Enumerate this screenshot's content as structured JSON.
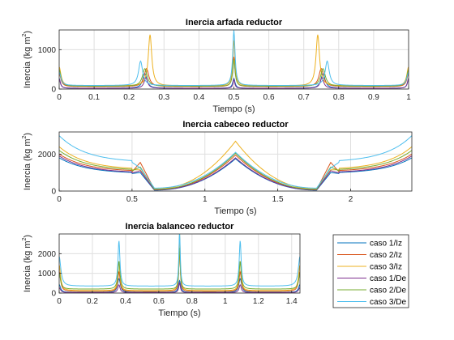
{
  "colors": {
    "caso1_Iz": "#0072BD",
    "caso2_Iz": "#D95319",
    "caso3_Iz": "#EDB120",
    "caso1_De": "#7E2F8E",
    "caso2_De": "#77AC30",
    "caso3_De": "#4DBEEE",
    "grid": "#dfdfdf",
    "axis": "#262626"
  },
  "legend": {
    "placement": "right of bottom panel",
    "entries": [
      "caso 1/Iz",
      "caso 2/Iz",
      "caso 3/Iz",
      "caso 1/De",
      "caso 2/De",
      "caso 3/De"
    ]
  },
  "chart_data": [
    {
      "type": "line",
      "title": "Inercia arfada reductor",
      "xlabel": "Tiempo (s)",
      "ylabel_text": "Inercia (kg m",
      "ylabel_sup": "2",
      "ylabel_close": ")",
      "xlim": [
        0,
        1
      ],
      "ylim": [
        0,
        1500
      ],
      "xticks": [
        0,
        0.1,
        0.2,
        0.3,
        0.4,
        0.5,
        0.6,
        0.7,
        0.8,
        0.9,
        1
      ],
      "xtick_labels": [
        "0",
        "0.1",
        "0.2",
        "0.3",
        "0.4",
        "0.5",
        "0.6",
        "0.7",
        "0.8",
        "0.9",
        "1"
      ],
      "yticks": [
        0,
        1000
      ],
      "ytick_labels": [
        "0",
        "1000"
      ],
      "grid": true,
      "period": 0.5,
      "series": [
        {
          "key": "caso1_Iz",
          "base": 20,
          "peaks": [
            {
              "x": 0.245,
              "h": 380,
              "w": 0.007
            },
            {
              "x": 0.5,
              "h": 250,
              "w": 0.004
            },
            {
              "x": 0.755,
              "h": 380,
              "w": 0.007
            },
            {
              "x": 1.0,
              "h": 250,
              "w": 0.004
            },
            {
              "x": 0,
              "h": 250,
              "w": 0.004
            }
          ]
        },
        {
          "key": "caso2_Iz",
          "base": 60,
          "peaks": [
            {
              "x": 0.25,
              "h": 460,
              "w": 0.008
            },
            {
              "x": 0.5,
              "h": 760,
              "w": 0.004
            },
            {
              "x": 0.75,
              "h": 460,
              "w": 0.008
            },
            {
              "x": 1.0,
              "h": 330,
              "w": 0.006
            },
            {
              "x": 0,
              "h": 330,
              "w": 0.006
            }
          ]
        },
        {
          "key": "caso3_Iz",
          "base": 80,
          "peaks": [
            {
              "x": 0.26,
              "h": 1300,
              "w": 0.006
            },
            {
              "x": 0.5,
              "h": 1150,
              "w": 0.004
            },
            {
              "x": 0.74,
              "h": 1300,
              "w": 0.006
            },
            {
              "x": 1.0,
              "h": 480,
              "w": 0.006
            },
            {
              "x": 0,
              "h": 480,
              "w": 0.006
            }
          ]
        },
        {
          "key": "caso1_De",
          "base": 20,
          "peaks": [
            {
              "x": 0.248,
              "h": 270,
              "w": 0.006
            },
            {
              "x": 0.5,
              "h": 230,
              "w": 0.003
            },
            {
              "x": 0.752,
              "h": 270,
              "w": 0.006
            },
            {
              "x": 1.0,
              "h": 240,
              "w": 0.004
            },
            {
              "x": 0,
              "h": 240,
              "w": 0.004
            }
          ]
        },
        {
          "key": "caso2_De",
          "base": 70,
          "peaks": [
            {
              "x": 0.245,
              "h": 450,
              "w": 0.008
            },
            {
              "x": 0.5,
              "h": 680,
              "w": 0.004
            },
            {
              "x": 0.755,
              "h": 450,
              "w": 0.008
            },
            {
              "x": 1.0,
              "h": 420,
              "w": 0.006
            },
            {
              "x": 0,
              "h": 420,
              "w": 0.006
            }
          ]
        },
        {
          "key": "caso3_De",
          "base": 90,
          "peaks": [
            {
              "x": 0.233,
              "h": 620,
              "w": 0.007
            },
            {
              "x": 0.5,
              "h": 1400,
              "w": 0.004
            },
            {
              "x": 0.767,
              "h": 620,
              "w": 0.007
            },
            {
              "x": 1.0,
              "h": 330,
              "w": 0.006
            },
            {
              "x": 0,
              "h": 330,
              "w": 0.006
            }
          ]
        }
      ]
    },
    {
      "type": "line",
      "title": "Inercia cabeceo reductor",
      "xlabel": "Tiempo (s)",
      "ylabel_text": "Inercia (kg m",
      "ylabel_sup": "2",
      "ylabel_close": ")",
      "xlim": [
        0,
        2.42
      ],
      "ylim": [
        0,
        3200
      ],
      "xticks": [
        0,
        0.5,
        1,
        1.5,
        2
      ],
      "xtick_labels": [
        "0",
        "0.5",
        "1",
        "1.5",
        "2"
      ],
      "yticks": [
        0,
        2000
      ],
      "ytick_labels": [
        "0",
        "2000"
      ],
      "grid": true,
      "series": [
        {
          "key": "caso1_Iz",
          "shape": "cabeceo",
          "start": 1800,
          "trough": 950,
          "dip": 1000,
          "mid": 1750,
          "low": 50
        },
        {
          "key": "caso2_Iz",
          "shape": "cabeceo",
          "start": 2000,
          "trough": 1050,
          "dip": 1550,
          "mid": 1950,
          "low": 80
        },
        {
          "key": "caso3_Iz",
          "shape": "cabeceo",
          "start": 2400,
          "trough": 1150,
          "dip": 1150,
          "mid": 2700,
          "low": 110
        },
        {
          "key": "caso1_De",
          "shape": "cabeceo",
          "start": 1900,
          "trough": 980,
          "dip": 1100,
          "mid": 1800,
          "low": 60
        },
        {
          "key": "caso2_De",
          "shape": "cabeceo",
          "start": 2200,
          "trough": 1100,
          "dip": 1300,
          "mid": 2050,
          "low": 90
        },
        {
          "key": "caso3_De",
          "shape": "cabeceo",
          "start": 3000,
          "trough": 1550,
          "dip": 1250,
          "mid": 2100,
          "low": 160
        }
      ]
    },
    {
      "type": "line",
      "title": "Inercia balanceo reductor",
      "xlabel": "Tiempo (s)",
      "ylabel_text": "Inercia (kg m",
      "ylabel_sup": "2",
      "ylabel_close": ")",
      "xlim": [
        0,
        1.45
      ],
      "ylim": [
        0,
        3000
      ],
      "xticks": [
        0,
        0.2,
        0.4,
        0.6,
        0.8,
        1,
        1.2,
        1.4
      ],
      "xtick_labels": [
        "0",
        "0.2",
        "0.4",
        "0.6",
        "0.8",
        "1",
        "1.2",
        "1.4"
      ],
      "yticks": [
        0,
        1000,
        2000
      ],
      "ytick_labels": [
        "0",
        "1000",
        "2000"
      ],
      "grid": true,
      "series": [
        {
          "key": "caso1_Iz",
          "base": 30,
          "peaks": [
            {
              "x": 0,
              "h": 400,
              "w": 0.01
            },
            {
              "x": 0.36,
              "h": 700,
              "w": 0.01
            },
            {
              "x": 0.725,
              "h": 600,
              "w": 0.008
            },
            {
              "x": 1.09,
              "h": 700,
              "w": 0.01
            },
            {
              "x": 1.45,
              "h": 400,
              "w": 0.01
            }
          ]
        },
        {
          "key": "caso2_Iz",
          "base": 80,
          "peaks": [
            {
              "x": 0,
              "h": 1000,
              "w": 0.01
            },
            {
              "x": 0.36,
              "h": 1000,
              "w": 0.008
            },
            {
              "x": 0.725,
              "h": 2200,
              "w": 0.005
            },
            {
              "x": 1.09,
              "h": 1000,
              "w": 0.008
            },
            {
              "x": 1.45,
              "h": 1000,
              "w": 0.01
            }
          ]
        },
        {
          "key": "caso3_Iz",
          "base": 120,
          "peaks": [
            {
              "x": 0,
              "h": 1300,
              "w": 0.01
            },
            {
              "x": 0.36,
              "h": 1500,
              "w": 0.007
            },
            {
              "x": 0.725,
              "h": 2950,
              "w": 0.005
            },
            {
              "x": 1.09,
              "h": 1500,
              "w": 0.007
            },
            {
              "x": 1.45,
              "h": 1300,
              "w": 0.01
            }
          ]
        },
        {
          "key": "caso1_De",
          "base": 20,
          "peaks": [
            {
              "x": 0,
              "h": 250,
              "w": 0.01
            },
            {
              "x": 0.36,
              "h": 400,
              "w": 0.008
            },
            {
              "x": 0.725,
              "h": 500,
              "w": 0.006
            },
            {
              "x": 1.09,
              "h": 400,
              "w": 0.008
            },
            {
              "x": 1.45,
              "h": 250,
              "w": 0.01
            }
          ]
        },
        {
          "key": "caso2_De",
          "base": 200,
          "peaks": [
            {
              "x": 0,
              "h": 800,
              "w": 0.01
            },
            {
              "x": 0.36,
              "h": 1400,
              "w": 0.008
            },
            {
              "x": 0.725,
              "h": 2100,
              "w": 0.005
            },
            {
              "x": 1.09,
              "h": 1400,
              "w": 0.008
            },
            {
              "x": 1.45,
              "h": 800,
              "w": 0.01
            }
          ]
        },
        {
          "key": "caso3_De",
          "base": 350,
          "peaks": [
            {
              "x": 0,
              "h": 1500,
              "w": 0.012
            },
            {
              "x": 0.36,
              "h": 2300,
              "w": 0.007
            },
            {
              "x": 0.725,
              "h": 2800,
              "w": 0.005
            },
            {
              "x": 1.09,
              "h": 2300,
              "w": 0.007
            },
            {
              "x": 1.45,
              "h": 1500,
              "w": 0.012
            }
          ]
        }
      ]
    }
  ]
}
